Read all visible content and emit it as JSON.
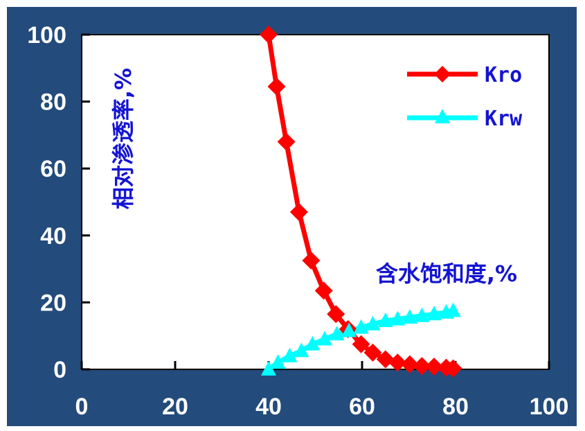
{
  "chart_data": {
    "type": "line",
    "xlabel": "含水饱和度,%",
    "ylabel": "相对渗透率,%",
    "xlim": [
      0,
      100
    ],
    "ylim": [
      0,
      100
    ],
    "x_ticks": [
      "0",
      "20",
      "40",
      "60",
      "80",
      "100"
    ],
    "y_ticks": [
      "0",
      "20",
      "40",
      "60",
      "80",
      "100"
    ],
    "legend_position": "top-right",
    "series": [
      {
        "name": "Kro",
        "color": "#ff0000",
        "marker": "diamond",
        "x": [
          40,
          41.7,
          43.8,
          46.5,
          49.1,
          51.8,
          54.4,
          57.0,
          59.8,
          62.3,
          65.0,
          67.6,
          70.2,
          72.8,
          75.4,
          78.0,
          79.5
        ],
        "y": [
          100,
          84.5,
          68,
          47,
          32.5,
          23.5,
          16.5,
          12,
          7.5,
          5,
          3,
          2,
          1.5,
          1,
          0.8,
          0.5,
          0.3
        ]
      },
      {
        "name": "Krw",
        "color": "#00ffff",
        "marker": "triangle",
        "x": [
          40,
          42.0,
          44.5,
          47.0,
          49.4,
          52.0,
          54.6,
          57.2,
          59.8,
          62.3,
          65.0,
          67.6,
          70.2,
          72.8,
          75.4,
          78.0,
          79.5
        ],
        "y": [
          0,
          2,
          4,
          5.5,
          7.5,
          9,
          10.5,
          11.5,
          12.5,
          13.5,
          14.5,
          15,
          15.5,
          16,
          16.5,
          17,
          17.5
        ]
      }
    ]
  }
}
